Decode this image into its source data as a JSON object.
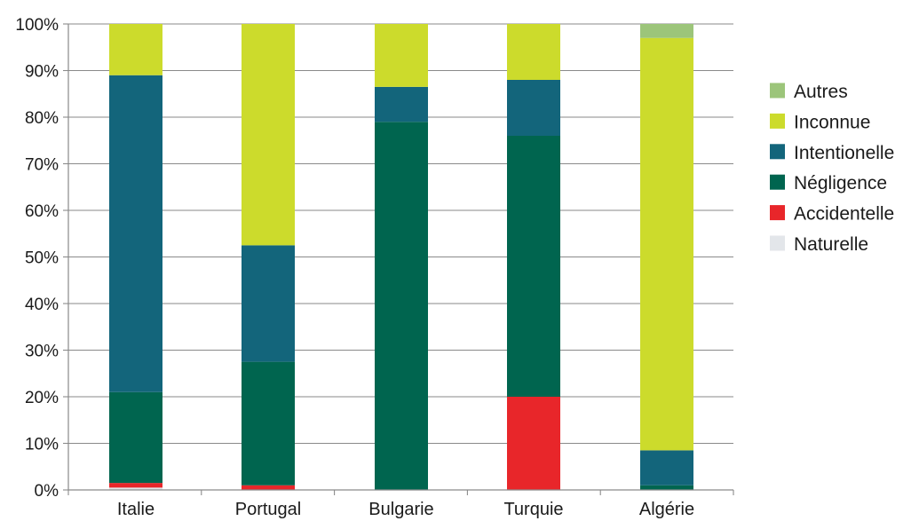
{
  "chart_data": {
    "type": "bar",
    "stacked": true,
    "categories": [
      "Italie",
      "Portugal",
      "Bulgarie",
      "Turquie",
      "Algérie"
    ],
    "series": [
      {
        "name": "Naturelle",
        "color": "#e3e6ea",
        "values": [
          0.5,
          0,
          0,
          0,
          0
        ]
      },
      {
        "name": "Accidentelle",
        "color": "#e8262a",
        "values": [
          1,
          1,
          0,
          20,
          0
        ]
      },
      {
        "name": "Négligence",
        "color": "#00654f",
        "values": [
          19.5,
          26.5,
          79,
          56,
          1
        ]
      },
      {
        "name": "Intentionelle",
        "color": "#13657b",
        "values": [
          68,
          25,
          7.5,
          12,
          7.5
        ]
      },
      {
        "name": "Inconnue",
        "color": "#ccdb2c",
        "values": [
          11,
          47.5,
          13.5,
          12,
          88.5
        ]
      },
      {
        "name": "Autres",
        "color": "#9cc57a",
        "values": [
          0,
          0,
          0,
          0,
          3
        ]
      }
    ],
    "ylim": [
      0,
      100
    ],
    "yticks": [
      "0%",
      "10%",
      "20%",
      "30%",
      "40%",
      "50%",
      "60%",
      "70%",
      "80%",
      "90%",
      "100%"
    ],
    "grid": true,
    "legend_position": "right",
    "legend_order": [
      "Autres",
      "Inconnue",
      "Intentionelle",
      "Négligence",
      "Accidentelle",
      "Naturelle"
    ]
  },
  "colors": {
    "axis": "#8a8a8a",
    "grid": "#8a8a8a",
    "text": "#1a1a1a"
  }
}
